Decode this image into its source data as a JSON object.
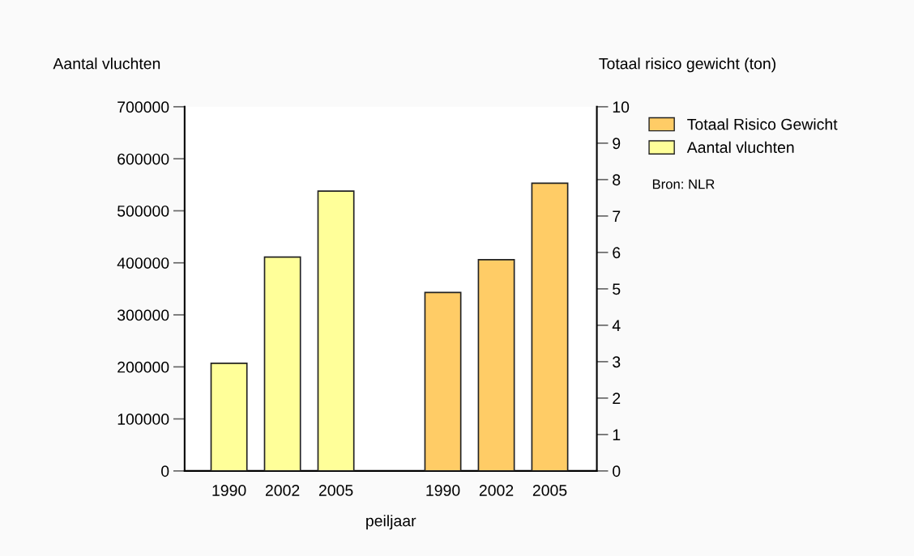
{
  "chart_data": {
    "type": "bar",
    "categories": [
      "1990",
      "2002",
      "2005",
      null,
      "1990",
      "2002",
      "2005"
    ],
    "series": [
      {
        "name": "Totaal Risico Gewicht",
        "color": "#ffcc66",
        "axis": "y2",
        "values": [
          null,
          null,
          null,
          null,
          4.9,
          5.8,
          7.9
        ]
      },
      {
        "name": "Aantal vluchten",
        "color": "#ffff99",
        "values": [
          207000,
          411000,
          538000,
          null,
          null,
          null,
          null
        ]
      }
    ],
    "xlabel": "peiljaar",
    "ylabel": "Aantal vluchten",
    "y2label": "Totaal risico gewicht (ton)",
    "ylim": [
      0,
      700000
    ],
    "yticks": [
      0,
      100000,
      200000,
      300000,
      400000,
      500000,
      600000,
      700000
    ],
    "y2lim": [
      0,
      10
    ],
    "y2ticks": [
      0,
      1,
      2,
      3,
      4,
      5,
      6,
      7,
      8,
      9,
      10
    ],
    "legend": "top right",
    "grid": false,
    "annotations": [
      "Bron: NLR"
    ]
  }
}
